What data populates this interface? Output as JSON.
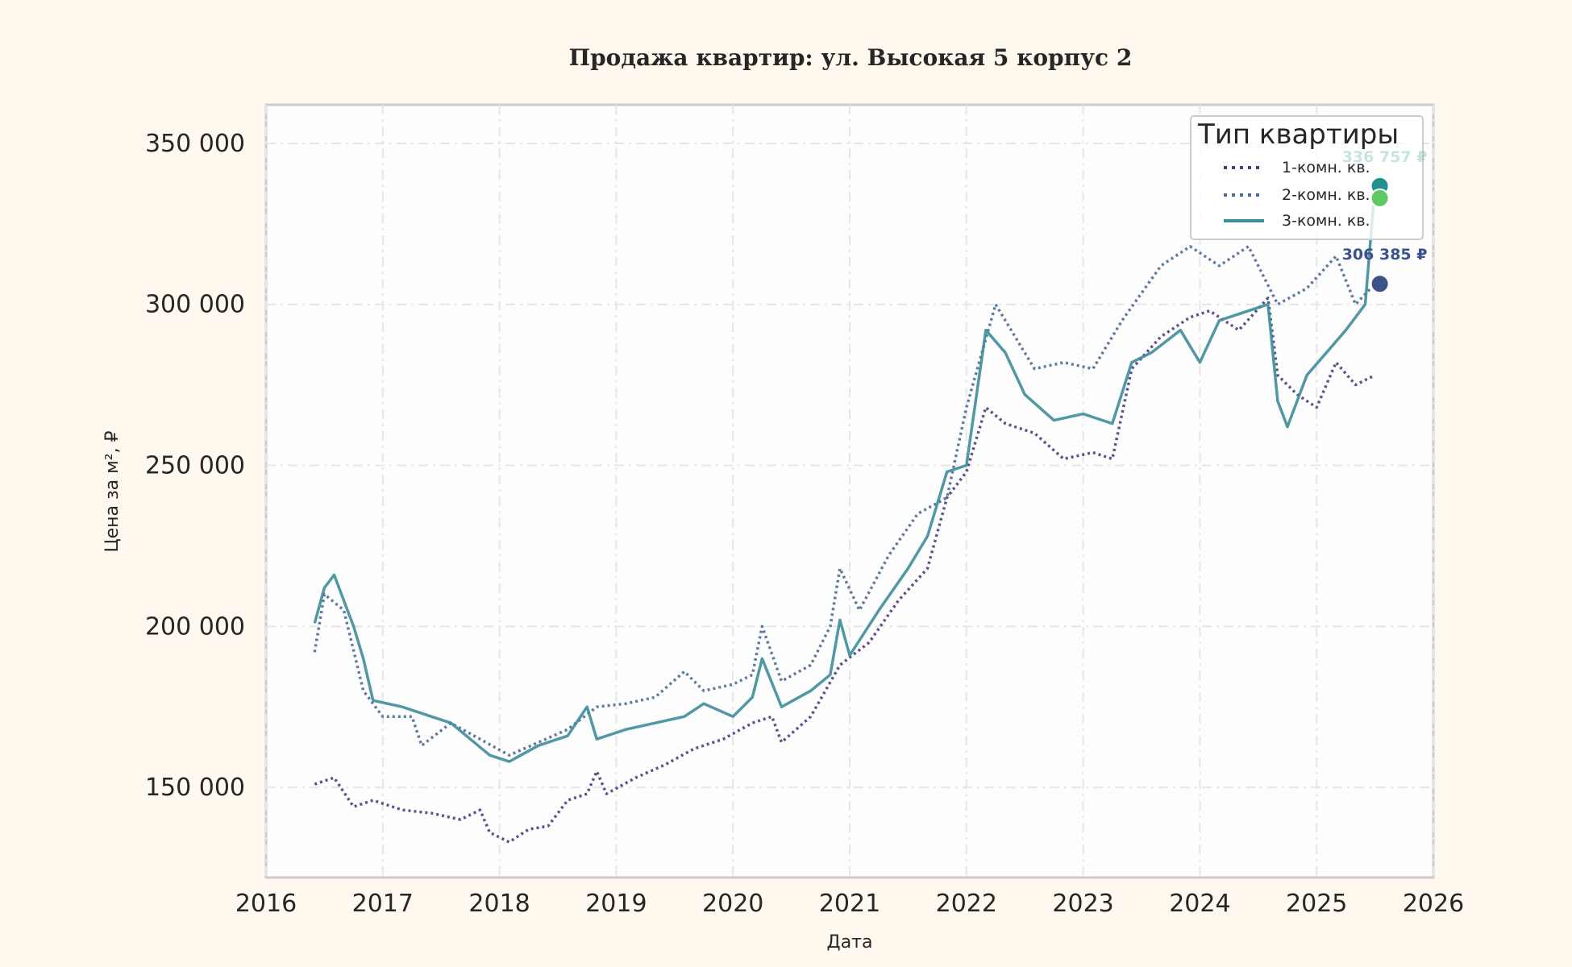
{
  "chart_data": {
    "type": "line",
    "title": "Продажа квартир: ул. Высокая 5 корпус 2",
    "xlabel": "Дата",
    "ylabel": "Цена за м², ₽",
    "xlim": [
      "2016-01",
      "2026-01"
    ],
    "ylim": [
      122000,
      362000
    ],
    "x_ticks": [
      "2016",
      "2017",
      "2018",
      "2019",
      "2020",
      "2021",
      "2022",
      "2023",
      "2024",
      "2025",
      "2026"
    ],
    "y_ticks": [
      150000,
      200000,
      250000,
      300000,
      350000
    ],
    "y_tick_labels": [
      "150 000",
      "200 000",
      "250 000",
      "300 000",
      "350 000"
    ],
    "grid": true,
    "legend": {
      "title": "Тип квартиры",
      "position": "top-right"
    },
    "series": [
      {
        "name": "1-комн. кв.",
        "color": "#4b3f7e",
        "style": "dotted",
        "x": [
          "2016-06",
          "2016-08",
          "2016-10",
          "2016-12",
          "2017-03",
          "2017-06",
          "2017-09",
          "2017-11",
          "2017-12",
          "2018-02",
          "2018-04",
          "2018-06",
          "2018-08",
          "2018-10",
          "2018-11",
          "2018-12",
          "2019-03",
          "2019-06",
          "2019-09",
          "2019-12",
          "2020-03",
          "2020-05",
          "2020-06",
          "2020-09",
          "2020-12",
          "2021-03",
          "2021-06",
          "2021-09",
          "2021-11",
          "2022-01",
          "2022-03",
          "2022-05",
          "2022-08",
          "2022-11",
          "2023-02",
          "2023-04",
          "2023-06",
          "2023-09",
          "2023-12",
          "2024-02",
          "2024-05",
          "2024-08",
          "2024-09",
          "2024-11",
          "2025-01",
          "2025-03",
          "2025-05",
          "2025-07"
        ],
        "y": [
          151000,
          153000,
          144000,
          146000,
          143000,
          142000,
          140000,
          143000,
          136000,
          133000,
          137000,
          138000,
          146000,
          148000,
          155000,
          148000,
          153000,
          157000,
          162000,
          165000,
          170000,
          172000,
          164000,
          172000,
          188000,
          195000,
          208000,
          218000,
          240000,
          248000,
          268000,
          263000,
          260000,
          252000,
          254000,
          252000,
          280000,
          290000,
          296000,
          298000,
          292000,
          302000,
          278000,
          272000,
          268000,
          282000,
          275000,
          278000
        ]
      },
      {
        "name": "2-комн. кв.",
        "color": "#4f6a94",
        "style": "dotted",
        "x": [
          "2016-06",
          "2016-07",
          "2016-09",
          "2016-11",
          "2017-01",
          "2017-04",
          "2017-05",
          "2017-08",
          "2017-11",
          "2018-02",
          "2018-05",
          "2018-08",
          "2018-11",
          "2019-02",
          "2019-05",
          "2019-08",
          "2019-10",
          "2020-01",
          "2020-03",
          "2020-04",
          "2020-06",
          "2020-09",
          "2020-11",
          "2020-12",
          "2021-02",
          "2021-05",
          "2021-08",
          "2021-11",
          "2022-01",
          "2022-04",
          "2022-06",
          "2022-08",
          "2022-11",
          "2023-02",
          "2023-05",
          "2023-09",
          "2023-12",
          "2024-03",
          "2024-06",
          "2024-09",
          "2024-12",
          "2025-03",
          "2025-05",
          "2025-07"
        ],
        "y": [
          192000,
          210000,
          205000,
          180000,
          172000,
          172000,
          163000,
          170000,
          165000,
          160000,
          164000,
          168000,
          175000,
          176000,
          178000,
          186000,
          180000,
          182000,
          185000,
          200000,
          183000,
          188000,
          200000,
          218000,
          205000,
          222000,
          235000,
          240000,
          268000,
          300000,
          290000,
          280000,
          282000,
          280000,
          295000,
          312000,
          318000,
          312000,
          318000,
          300000,
          305000,
          315000,
          300000,
          306385
        ]
      },
      {
        "name": "3-комн. кв.",
        "color": "#3e8d9a",
        "style": "solid",
        "x": [
          "2016-06",
          "2016-07",
          "2016-08",
          "2016-10",
          "2016-11",
          "2016-12",
          "2017-03",
          "2017-06",
          "2017-08",
          "2017-10",
          "2017-12",
          "2018-02",
          "2018-05",
          "2018-08",
          "2018-10",
          "2018-11",
          "2019-02",
          "2019-05",
          "2019-08",
          "2019-10",
          "2020-01",
          "2020-03",
          "2020-04",
          "2020-06",
          "2020-09",
          "2020-11",
          "2020-12",
          "2021-01",
          "2021-04",
          "2021-07",
          "2021-09",
          "2021-11",
          "2022-01",
          "2022-03",
          "2022-05",
          "2022-07",
          "2022-10",
          "2023-01",
          "2023-04",
          "2023-06",
          "2023-08",
          "2023-11",
          "2024-01",
          "2024-03",
          "2024-06",
          "2024-08",
          "2024-09",
          "2024-10",
          "2024-12",
          "2025-02",
          "2025-04",
          "2025-06",
          "2025-07"
        ],
        "y": [
          201000,
          212000,
          216000,
          200000,
          190000,
          177000,
          175000,
          172000,
          170000,
          165000,
          160000,
          158000,
          163000,
          166000,
          175000,
          165000,
          168000,
          170000,
          172000,
          176000,
          172000,
          178000,
          190000,
          175000,
          180000,
          185000,
          202000,
          191000,
          205000,
          218000,
          228000,
          248000,
          250000,
          292000,
          285000,
          272000,
          264000,
          266000,
          263000,
          282000,
          285000,
          292000,
          282000,
          295000,
          298000,
          300000,
          270000,
          262000,
          278000,
          285000,
          292000,
          300000,
          336757
        ]
      }
    ],
    "end_markers": [
      {
        "x": "2025-07",
        "y": 336757,
        "color": "#21918c",
        "label": "336 757 ₽"
      },
      {
        "x": "2025-07",
        "y": 333000,
        "color": "#5ec962"
      },
      {
        "x": "2025-07",
        "y": 306385,
        "color": "#3b528b",
        "label": "306 385 ₽"
      }
    ]
  }
}
